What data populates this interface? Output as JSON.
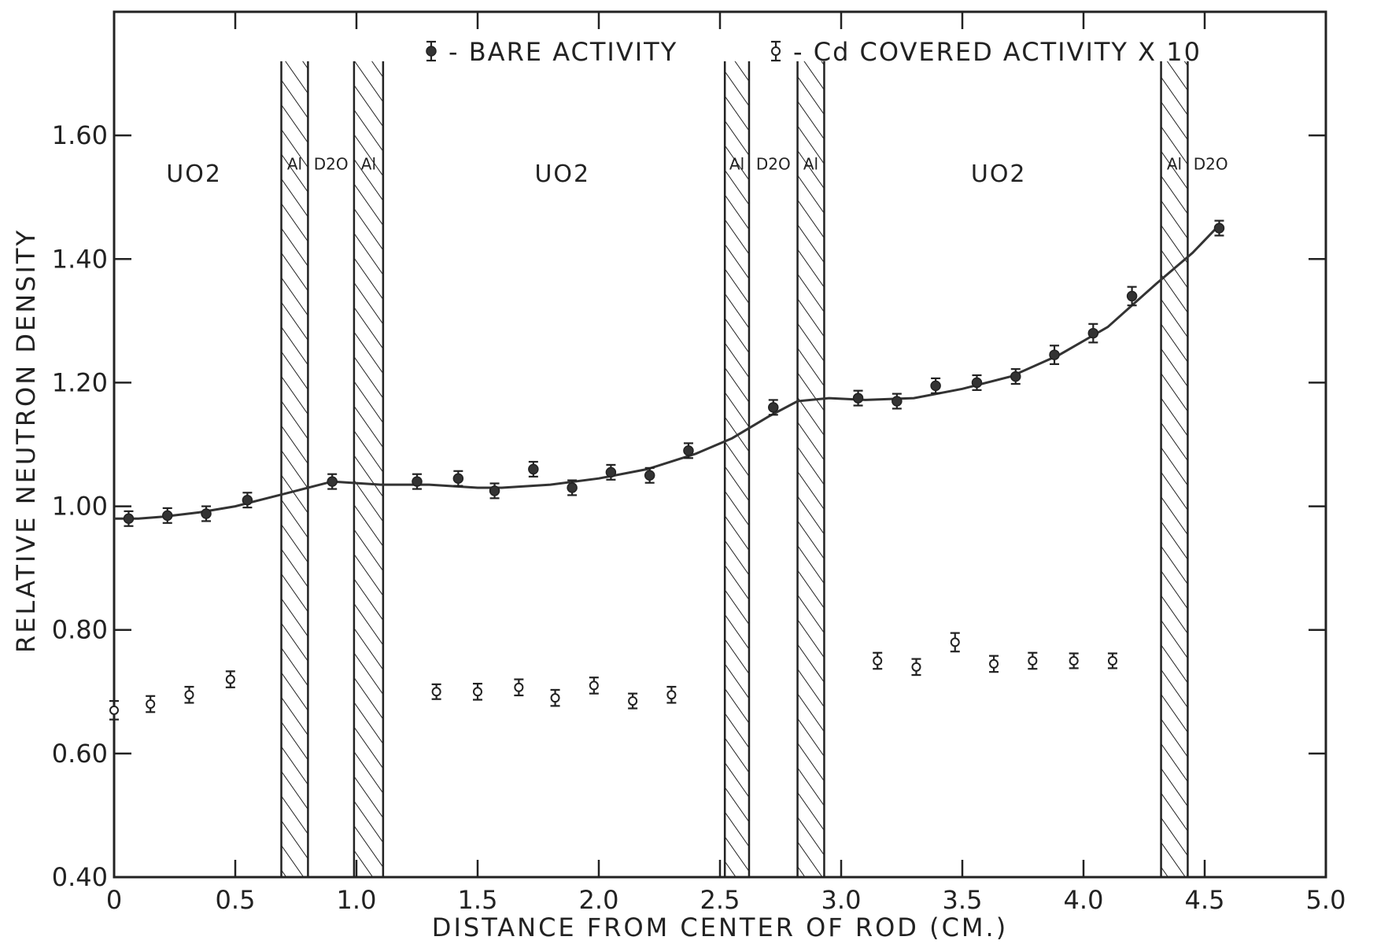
{
  "chart_data": {
    "type": "scatter",
    "title": "",
    "xlabel": "DISTANCE FROM CENTER OF ROD (CM.)",
    "ylabel": "RELATIVE NEUTRON DENSITY",
    "xlim": [
      0,
      5.0
    ],
    "ylim": [
      0.4,
      1.8
    ],
    "x_ticks": [
      "0",
      "0.5",
      "1.0",
      "1.5",
      "2.0",
      "2.5",
      "3.0",
      "3.5",
      "4.0",
      "4.5",
      "5.0"
    ],
    "x_tick_values": [
      0,
      0.5,
      1.0,
      1.5,
      2.0,
      2.5,
      3.0,
      3.5,
      4.0,
      4.5,
      5.0
    ],
    "y_ticks": [
      "0.40",
      "0.60",
      "0.80",
      "1.00",
      "1.20",
      "1.40",
      "1.60"
    ],
    "y_tick_values": [
      0.4,
      0.6,
      0.8,
      1.0,
      1.2,
      1.4,
      1.6
    ],
    "grid": false,
    "legend_position": "top-center",
    "legend": [
      {
        "marker": "filled",
        "label": "- BARE ACTIVITY"
      },
      {
        "marker": "open",
        "label": "- Cd COVERED ACTIVITY X 10"
      }
    ],
    "regions": [
      {
        "label": "UO2",
        "x": 0.33
      },
      {
        "label": "UO2",
        "x": 1.85
      },
      {
        "label": "UO2",
        "x": 3.65
      }
    ],
    "layers": [
      {
        "label": "Al",
        "x0": 0.69,
        "x1": 0.8,
        "hatched": true
      },
      {
        "label": "D2O",
        "x0": 0.8,
        "x1": 0.99,
        "hatched": false
      },
      {
        "label": "Al",
        "x0": 0.99,
        "x1": 1.11,
        "hatched": true
      },
      {
        "label": "Al",
        "x0": 2.52,
        "x1": 2.62,
        "hatched": true
      },
      {
        "label": "D2O",
        "x0": 2.62,
        "x1": 2.82,
        "hatched": false
      },
      {
        "label": "Al",
        "x0": 2.82,
        "x1": 2.93,
        "hatched": true
      },
      {
        "label": "Al",
        "x0": 4.32,
        "x1": 4.43,
        "hatched": true
      },
      {
        "label": "D2O",
        "x0": 4.43,
        "x1": 4.62,
        "hatched": false
      }
    ],
    "series": [
      {
        "name": "BARE ACTIVITY",
        "marker": "filled",
        "points": [
          {
            "x": 0.06,
            "y": 0.98,
            "err": 0.012
          },
          {
            "x": 0.22,
            "y": 0.985,
            "err": 0.012
          },
          {
            "x": 0.38,
            "y": 0.988,
            "err": 0.012
          },
          {
            "x": 0.55,
            "y": 1.01,
            "err": 0.012
          },
          {
            "x": 0.9,
            "y": 1.04,
            "err": 0.012
          },
          {
            "x": 1.25,
            "y": 1.04,
            "err": 0.012
          },
          {
            "x": 1.42,
            "y": 1.045,
            "err": 0.012
          },
          {
            "x": 1.57,
            "y": 1.025,
            "err": 0.012
          },
          {
            "x": 1.73,
            "y": 1.06,
            "err": 0.012
          },
          {
            "x": 1.89,
            "y": 1.03,
            "err": 0.012
          },
          {
            "x": 2.05,
            "y": 1.055,
            "err": 0.012
          },
          {
            "x": 2.21,
            "y": 1.05,
            "err": 0.012
          },
          {
            "x": 2.37,
            "y": 1.09,
            "err": 0.012
          },
          {
            "x": 2.72,
            "y": 1.16,
            "err": 0.012
          },
          {
            "x": 3.07,
            "y": 1.175,
            "err": 0.012
          },
          {
            "x": 3.23,
            "y": 1.17,
            "err": 0.012
          },
          {
            "x": 3.39,
            "y": 1.195,
            "err": 0.012
          },
          {
            "x": 3.56,
            "y": 1.2,
            "err": 0.012
          },
          {
            "x": 3.72,
            "y": 1.21,
            "err": 0.012
          },
          {
            "x": 3.88,
            "y": 1.245,
            "err": 0.015
          },
          {
            "x": 4.04,
            "y": 1.28,
            "err": 0.015
          },
          {
            "x": 4.2,
            "y": 1.34,
            "err": 0.015
          },
          {
            "x": 4.56,
            "y": 1.45,
            "err": 0.012
          }
        ]
      },
      {
        "name": "Cd COVERED ACTIVITY X 10",
        "marker": "open",
        "points": [
          {
            "x": 0.0,
            "y": 0.67,
            "err": 0.015
          },
          {
            "x": 0.15,
            "y": 0.68,
            "err": 0.013
          },
          {
            "x": 0.31,
            "y": 0.695,
            "err": 0.013
          },
          {
            "x": 0.48,
            "y": 0.72,
            "err": 0.013
          },
          {
            "x": 1.33,
            "y": 0.7,
            "err": 0.012
          },
          {
            "x": 1.5,
            "y": 0.7,
            "err": 0.013
          },
          {
            "x": 1.67,
            "y": 0.707,
            "err": 0.013
          },
          {
            "x": 1.82,
            "y": 0.69,
            "err": 0.013
          },
          {
            "x": 1.98,
            "y": 0.71,
            "err": 0.013
          },
          {
            "x": 2.14,
            "y": 0.685,
            "err": 0.012
          },
          {
            "x": 2.3,
            "y": 0.695,
            "err": 0.013
          },
          {
            "x": 3.15,
            "y": 0.75,
            "err": 0.013
          },
          {
            "x": 3.31,
            "y": 0.74,
            "err": 0.013
          },
          {
            "x": 3.47,
            "y": 0.78,
            "err": 0.015
          },
          {
            "x": 3.63,
            "y": 0.745,
            "err": 0.013
          },
          {
            "x": 3.79,
            "y": 0.75,
            "err": 0.013
          },
          {
            "x": 3.96,
            "y": 0.75,
            "err": 0.012
          },
          {
            "x": 4.12,
            "y": 0.75,
            "err": 0.012
          }
        ]
      }
    ],
    "fit_curve": {
      "name": "smooth curve through bare activity",
      "x": [
        0.0,
        0.1,
        0.2,
        0.35,
        0.5,
        0.7,
        0.9,
        1.1,
        1.3,
        1.5,
        1.6,
        1.8,
        2.0,
        2.2,
        2.4,
        2.55,
        2.7,
        2.82,
        2.95,
        3.1,
        3.3,
        3.5,
        3.7,
        3.9,
        4.1,
        4.3,
        4.45,
        4.56
      ],
      "y": [
        0.98,
        0.98,
        0.983,
        0.99,
        1.0,
        1.02,
        1.04,
        1.035,
        1.035,
        1.03,
        1.03,
        1.035,
        1.045,
        1.06,
        1.085,
        1.11,
        1.145,
        1.17,
        1.175,
        1.172,
        1.175,
        1.19,
        1.21,
        1.245,
        1.29,
        1.36,
        1.41,
        1.455
      ]
    }
  }
}
